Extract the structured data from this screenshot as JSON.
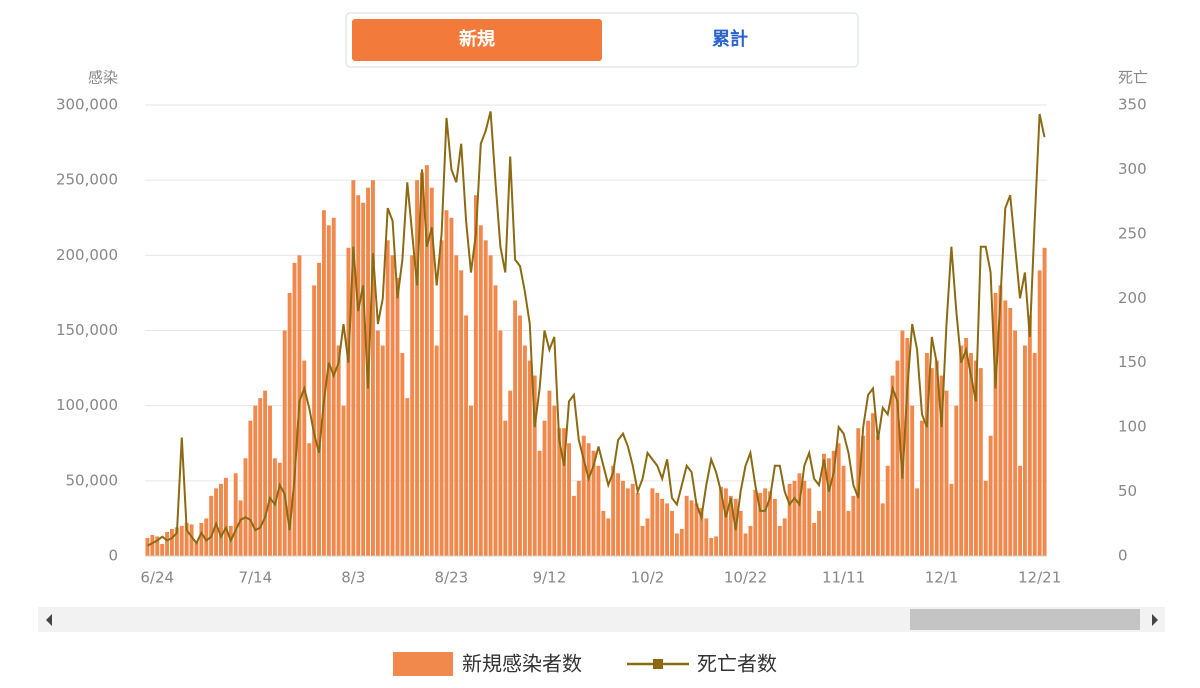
{
  "tabs": [
    "新規",
    "累計"
  ],
  "chart_data": {
    "type": "bar-line",
    "y_title": "感染",
    "y2_title": "死亡",
    "categories": [
      null,
      null,
      "6/24",
      null,
      null,
      null,
      null,
      null,
      null,
      null,
      null,
      null,
      null,
      null,
      null,
      null,
      null,
      null,
      null,
      null,
      null,
      null,
      "7/14",
      null,
      null,
      null,
      null,
      null,
      null,
      null,
      null,
      null,
      null,
      null,
      null,
      null,
      null,
      null,
      null,
      null,
      null,
      null,
      "8/3",
      null,
      null,
      null,
      null,
      null,
      null,
      null,
      null,
      null,
      null,
      null,
      null,
      null,
      null,
      null,
      null,
      null,
      null,
      null,
      "8/23",
      null,
      null,
      null,
      null,
      null,
      null,
      null,
      null,
      null,
      null,
      null,
      null,
      null,
      null,
      null,
      null,
      null,
      null,
      null,
      "9/12",
      null,
      null,
      null,
      null,
      null,
      null,
      null,
      null,
      null,
      null,
      null,
      null,
      null,
      null,
      null,
      null,
      null,
      null,
      null,
      "10/2",
      null,
      null,
      null,
      null,
      null,
      null,
      null,
      null,
      null,
      null,
      null,
      null,
      null,
      null,
      null,
      null,
      null,
      null,
      null,
      "10/22",
      null,
      null,
      null,
      null,
      null,
      null,
      null,
      null,
      null,
      null,
      null,
      null,
      null,
      null,
      null,
      null,
      null,
      null,
      null,
      "11/11",
      null,
      null,
      null,
      null,
      null,
      null,
      null,
      null,
      null,
      null,
      null,
      null,
      null,
      null,
      null,
      null,
      null,
      null,
      null,
      "12/1",
      null,
      null,
      null,
      null,
      null,
      null,
      null,
      null,
      null,
      null,
      null,
      null,
      null,
      null,
      null,
      null,
      null,
      null,
      null,
      "12/21",
      null
    ],
    "series": [
      {
        "name": "新規感染者数",
        "color": "#f2894c",
        "kind": "bar",
        "values": [
          12000,
          14000,
          13000,
          8000,
          16000,
          18000,
          19000,
          20000,
          22000,
          21000,
          10000,
          22000,
          25000,
          40000,
          45000,
          48000,
          52000,
          20000,
          55000,
          37000,
          65000,
          90000,
          100000,
          105000,
          110000,
          100000,
          65000,
          62000,
          150000,
          175000,
          195000,
          200000,
          130000,
          75000,
          180000,
          195000,
          230000,
          220000,
          225000,
          140000,
          100000,
          205000,
          250000,
          240000,
          235000,
          245000,
          250000,
          150000,
          140000,
          210000,
          200000,
          185000,
          135000,
          105000,
          200000,
          250000,
          255000,
          260000,
          245000,
          140000,
          210000,
          230000,
          225000,
          200000,
          190000,
          160000,
          100000,
          240000,
          220000,
          210000,
          200000,
          180000,
          150000,
          90000,
          110000,
          170000,
          160000,
          140000,
          130000,
          120000,
          70000,
          90000,
          110000,
          100000,
          85000,
          85000,
          75000,
          40000,
          50000,
          80000,
          75000,
          70000,
          60000,
          30000,
          25000,
          60000,
          55000,
          50000,
          45000,
          48000,
          42000,
          20000,
          25000,
          45000,
          42000,
          38000,
          35000,
          30000,
          15000,
          18000,
          40000,
          37000,
          35000,
          32000,
          25000,
          12000,
          13000,
          46000,
          45000,
          40000,
          38000,
          30000,
          15000,
          20000,
          44000,
          42000,
          45000,
          43000,
          38000,
          20000,
          25000,
          48000,
          50000,
          55000,
          50000,
          45000,
          22000,
          30000,
          68000,
          65000,
          70000,
          75000,
          60000,
          30000,
          40000,
          85000,
          80000,
          90000,
          95000,
          80000,
          35000,
          60000,
          120000,
          130000,
          150000,
          145000,
          100000,
          45000,
          90000,
          135000,
          125000,
          130000,
          120000,
          110000,
          48000,
          100000,
          140000,
          145000,
          135000,
          130000,
          125000,
          50000,
          80000,
          175000,
          180000,
          170000,
          165000,
          150000,
          60000,
          140000,
          160000,
          135000,
          190000,
          205000
        ]
      },
      {
        "name": "死亡者数",
        "color": "#8c6a12",
        "kind": "line",
        "axis": "y2",
        "values": [
          8,
          10,
          12,
          15,
          12,
          14,
          18,
          92,
          20,
          15,
          10,
          18,
          12,
          15,
          25,
          15,
          22,
          12,
          20,
          28,
          30,
          28,
          20,
          22,
          30,
          45,
          40,
          55,
          48,
          20,
          60,
          120,
          130,
          115,
          95,
          80,
          120,
          150,
          140,
          150,
          180,
          150,
          240,
          190,
          210,
          130,
          235,
          180,
          200,
          270,
          260,
          200,
          230,
          290,
          250,
          210,
          300,
          240,
          255,
          210,
          250,
          340,
          300,
          290,
          320,
          260,
          220,
          250,
          320,
          330,
          345,
          290,
          240,
          220,
          310,
          230,
          225,
          205,
          180,
          100,
          130,
          175,
          160,
          170,
          90,
          70,
          120,
          125,
          90,
          75,
          60,
          70,
          85,
          70,
          55,
          65,
          90,
          95,
          85,
          70,
          50,
          60,
          80,
          75,
          70,
          60,
          75,
          45,
          40,
          55,
          70,
          65,
          40,
          30,
          55,
          75,
          65,
          50,
          30,
          45,
          20,
          50,
          70,
          80,
          55,
          35,
          35,
          45,
          70,
          70,
          50,
          40,
          45,
          40,
          70,
          80,
          60,
          55,
          75,
          50,
          65,
          100,
          95,
          80,
          55,
          45,
          100,
          125,
          130,
          90,
          115,
          110,
          130,
          120,
          60,
          130,
          180,
          160,
          110,
          100,
          170,
          150,
          100,
          180,
          240,
          190,
          150,
          160,
          140,
          120,
          240,
          240,
          220,
          130,
          200,
          270,
          280,
          240,
          200,
          220,
          170,
          260,
          343,
          325
        ]
      }
    ],
    "ylim": [
      0,
      300000
    ],
    "yticks": [
      0,
      {
        "value": 50000,
        "label": "50,000"
      },
      {
        "value": 100000,
        "label": "100,000"
      },
      {
        "value": 150000,
        "label": "150,000"
      },
      {
        "value": 200000,
        "label": "200,000"
      },
      {
        "value": 250000,
        "label": "250,000"
      },
      {
        "value": 300000,
        "label": "300,000"
      }
    ],
    "y2lim": [
      0,
      350
    ],
    "y2ticks": [
      0,
      50,
      100,
      150,
      200,
      250,
      300,
      350
    ],
    "grid": true,
    "legend": "bottom"
  }
}
